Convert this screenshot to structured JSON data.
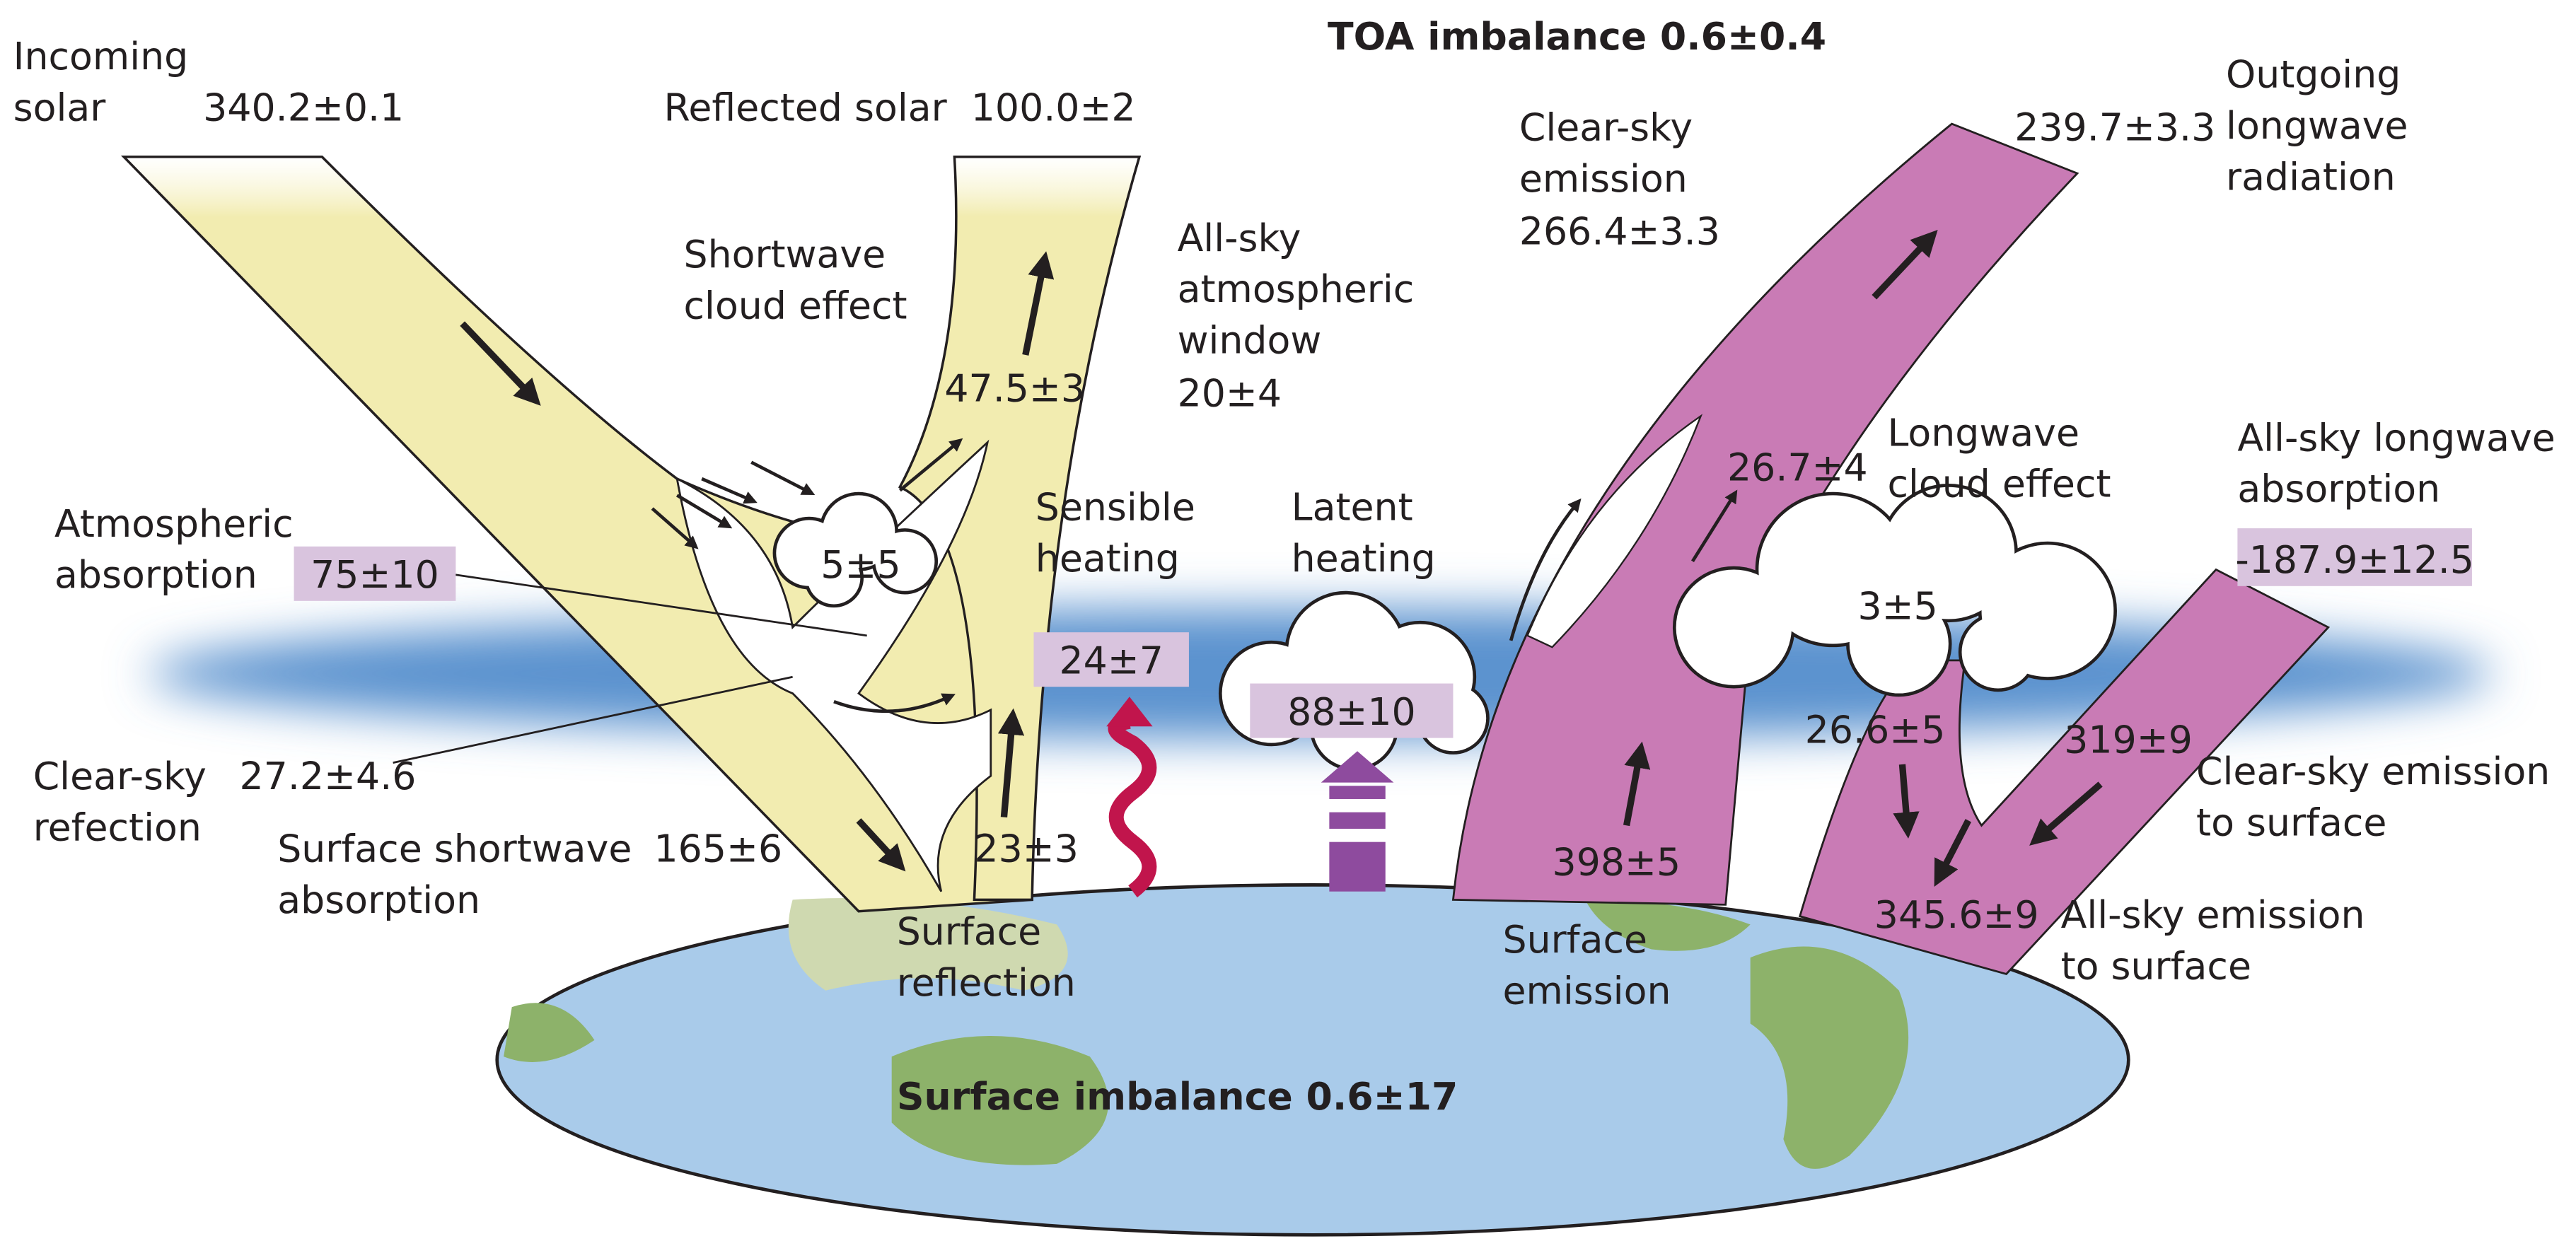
{
  "title": "TOA imbalance 0.6±0.4",
  "footer": "Surface imbalance 0.6±17",
  "labels": [
    {
      "lines": [
        "Incoming",
        "solar"
      ]
    },
    {
      "lines": [
        "Reflected solar"
      ]
    },
    {
      "lines": [
        "Shortwave",
        "cloud effect"
      ]
    },
    {
      "lines": [
        "All-sky",
        "atmospheric",
        "window"
      ]
    },
    {
      "lines": [
        "Atmospheric",
        "absorption"
      ]
    },
    {
      "lines": [
        "Sensible",
        "heating"
      ]
    },
    {
      "lines": [
        "Latent",
        "heating"
      ]
    },
    {
      "lines": [
        "Clear-sky",
        "emission"
      ]
    },
    {
      "lines": [
        "Outgoing",
        "longwave",
        "radiation"
      ]
    },
    {
      "lines": [
        "Longwave",
        "cloud effect"
      ]
    },
    {
      "lines": [
        "All-sky longwave",
        "absorption"
      ]
    },
    {
      "lines": [
        "Clear-sky",
        "refection"
      ]
    },
    {
      "lines": [
        "Surface shortwave",
        "absorption"
      ]
    },
    {
      "lines": [
        "Clear-sky emission",
        "to surface"
      ]
    },
    {
      "lines": [
        "All-sky emission",
        "to surface"
      ]
    },
    {
      "lines": [
        "Surface",
        "reflection"
      ]
    },
    {
      "lines": [
        "Surface",
        "emission"
      ]
    }
  ],
  "values": [
    "340.2±0.1",
    "100.0±2",
    "47.5±3",
    "20±4",
    "266.4±3.3",
    "239.7±3.3",
    "5±5",
    "26.7±4",
    "3±5",
    "27.2±4.6",
    "165±6",
    "23±3",
    "398±5",
    "26.6±5",
    "319±9",
    "345.6±9"
  ],
  "boxed_values": [
    "75±10",
    "24±7",
    "88±10",
    "-187.9±12.5"
  ]
}
